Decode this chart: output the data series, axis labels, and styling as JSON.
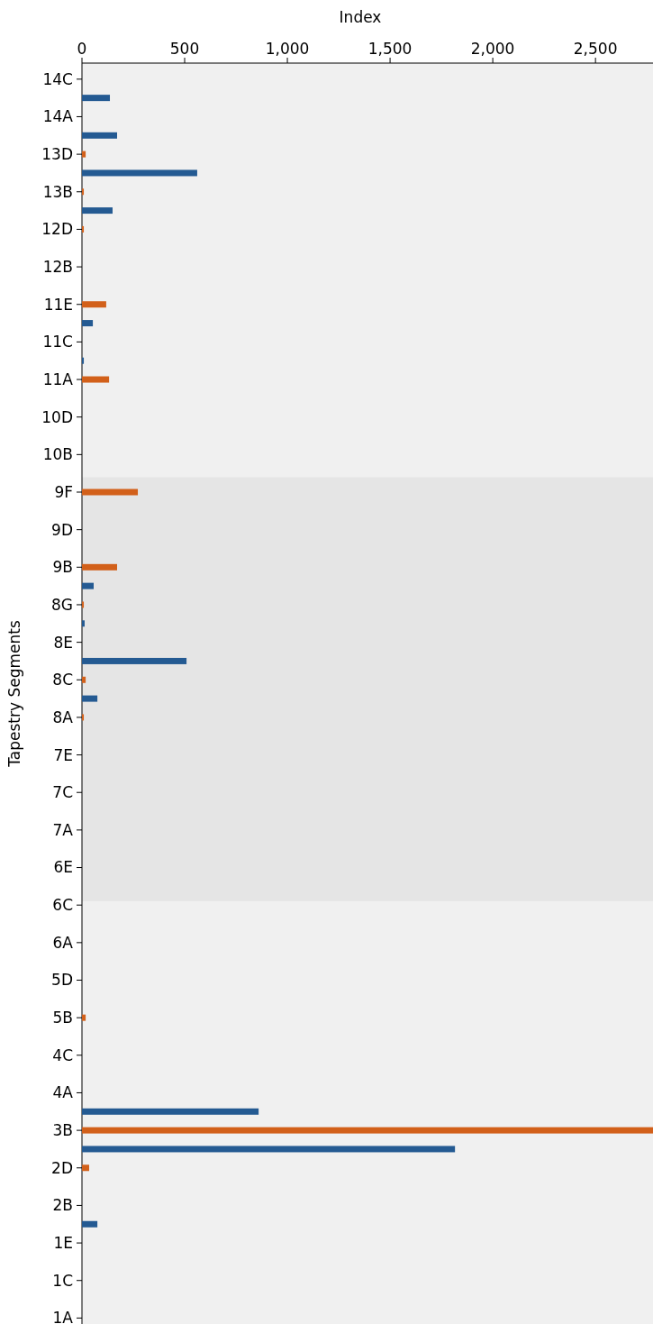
{
  "chart_data": {
    "type": "bar",
    "orientation": "horizontal",
    "xlabel": "Index",
    "ylabel": "Tapestry Segments",
    "categories": [
      "14C",
      null,
      "14A",
      null,
      "13D",
      null,
      "13B",
      null,
      "12D",
      null,
      "12B",
      null,
      "11E",
      null,
      "11C",
      null,
      "11A",
      null,
      "10D",
      null,
      "10B",
      null,
      "9F",
      null,
      "9D",
      null,
      "9B",
      null,
      "8G",
      null,
      "8E",
      null,
      "8C",
      null,
      "8A",
      null,
      "7E",
      null,
      "7C",
      null,
      "7A",
      null,
      "6E",
      null,
      "6C",
      null,
      "6A",
      null,
      "5D",
      null,
      "5B",
      null,
      "4C",
      null,
      "4A",
      null,
      "3B",
      null,
      "2D",
      null,
      "2B",
      null,
      "1E",
      null,
      "1C",
      null,
      "1A"
    ],
    "values": [
      0,
      136,
      0,
      171,
      18,
      561,
      9,
      149,
      9,
      0,
      0,
      0,
      118,
      53,
      0,
      9,
      132,
      0,
      0,
      0,
      0,
      0,
      272,
      0,
      0,
      0,
      171,
      57,
      9,
      13,
      0,
      509,
      18,
      75,
      9,
      0,
      0,
      0,
      0,
      0,
      0,
      0,
      0,
      0,
      0,
      0,
      0,
      0,
      0,
      0,
      18,
      0,
      0,
      0,
      0,
      860,
      2780,
      1816,
      35,
      0,
      0,
      75,
      0,
      0,
      0,
      0,
      0
    ],
    "colors": [
      "#d2601a",
      "#245a92",
      "#d2601a",
      "#245a92",
      "#d2601a",
      "#245a92",
      "#d2601a",
      "#245a92",
      "#d2601a",
      "#245a92",
      "#d2601a",
      "#245a92",
      "#d2601a",
      "#245a92",
      "#d2601a",
      "#245a92",
      "#d2601a",
      "#245a92",
      "#d2601a",
      "#245a92",
      "#d2601a",
      "#245a92",
      "#d2601a",
      "#245a92",
      "#d2601a",
      "#245a92",
      "#d2601a",
      "#245a92",
      "#d2601a",
      "#245a92",
      "#d2601a",
      "#245a92",
      "#d2601a",
      "#245a92",
      "#d2601a",
      "#245a92",
      "#d2601a",
      "#245a92",
      "#d2601a",
      "#245a92",
      "#d2601a",
      "#245a92",
      "#d2601a",
      "#245a92",
      "#d2601a",
      "#245a92",
      "#d2601a",
      "#245a92",
      "#d2601a",
      "#245a92",
      "#d2601a",
      "#245a92",
      "#d2601a",
      "#245a92",
      "#d2601a",
      "#245a92",
      "#d2601a",
      "#245a92",
      "#d2601a",
      "#245a92",
      "#d2601a",
      "#245a92",
      "#d2601a",
      "#245a92",
      "#d2601a",
      "#245a92",
      "#d2601a"
    ],
    "xlim": [
      0,
      2780
    ],
    "xticks": [
      0,
      {
        "value": 500,
        "label": "500"
      },
      {
        "value": 1000,
        "label": "1,000"
      },
      {
        "value": 1500,
        "label": "1,500"
      },
      {
        "value": 2000,
        "label": "2,000"
      },
      {
        "value": 2500,
        "label": "2,500"
      }
    ],
    "bands": [
      {
        "axis": "y",
        "from": "9F",
        "to": "6C",
        "color": "#e5e5e5"
      }
    ],
    "grid": false
  }
}
